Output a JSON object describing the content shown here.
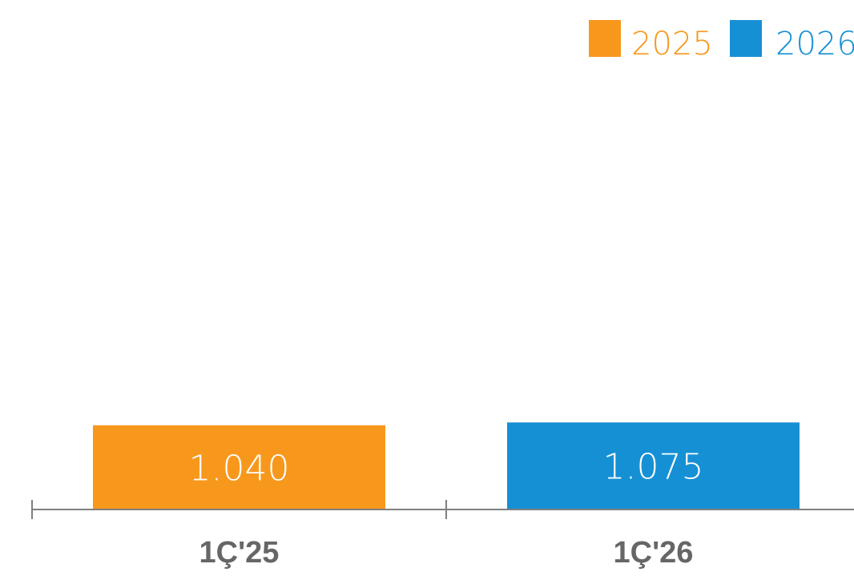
{
  "chart_data": {
    "type": "bar",
    "categories": [
      "1Ç'25",
      "1Ç'26"
    ],
    "values": [
      1040,
      1075
    ],
    "value_labels": [
      "1.040",
      "1.075"
    ],
    "series": [
      {
        "name": "2025",
        "color": "#F7981D"
      },
      {
        "name": "2026",
        "color": "#1690D5"
      }
    ],
    "bar_colors": [
      "#F7981D",
      "#1690D5"
    ],
    "axis_color": "#7F7F7F",
    "category_label_color": "#666666",
    "value_label_color": "#FFFFFF",
    "ylim": [
      0,
      5500
    ],
    "legend_position": "top-right",
    "grid": false
  }
}
